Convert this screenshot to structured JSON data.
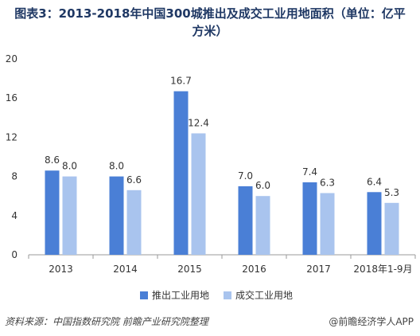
{
  "title_line1": "图表3：2013-2018年中国300城推出及成交工业用地面积（单位：亿平",
  "title_line2": "方米）",
  "source": "资料来源：中国指数研究院  前瞻产业研究院整理",
  "brand": "@前瞻经济学人APP",
  "colors": {
    "series1": "#4a7fd6",
    "series2": "#a9c4ee",
    "title": "#1f3864"
  },
  "chart_data": {
    "type": "bar",
    "categories": [
      "2013",
      "2014",
      "2015",
      "2016",
      "2017",
      "2018年1-9月"
    ],
    "series": [
      {
        "name": "推出工业用地",
        "values": [
          8.6,
          8.0,
          16.7,
          7.0,
          7.4,
          6.4
        ]
      },
      {
        "name": "成交工业用地",
        "values": [
          8.0,
          6.6,
          12.4,
          6.0,
          6.3,
          5.3
        ]
      }
    ],
    "ylim": [
      0,
      20
    ],
    "yticks": [
      0,
      4,
      8,
      12,
      16,
      20
    ],
    "legend_position": "bottom",
    "grid": false
  }
}
